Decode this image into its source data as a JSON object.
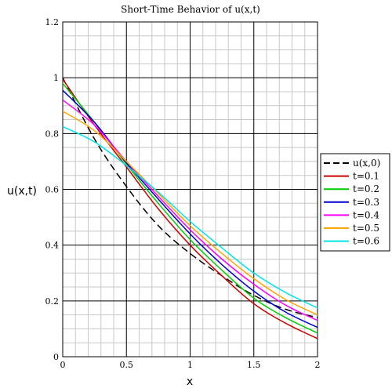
{
  "chart_data": {
    "type": "line",
    "title": "Short-Time Behavior of u(x,t)",
    "xlabel": "x",
    "ylabel": "u(x,t)",
    "xlim": [
      0,
      2
    ],
    "ylim": [
      0,
      1.2
    ],
    "x_ticks": [
      "0",
      "0.5",
      "1",
      "1.5",
      "2"
    ],
    "y_ticks": [
      "0",
      "0.2",
      "0.4",
      "0.6",
      "0.8",
      "1",
      "1.2"
    ],
    "grid": true,
    "legend_position": "right",
    "x": [
      0,
      0.25,
      0.5,
      0.75,
      1.0,
      1.25,
      1.5,
      1.75,
      2.0
    ],
    "series": [
      {
        "name": "u(x,0)",
        "color": "#000000",
        "dash": true,
        "values": [
          1.0,
          0.78,
          0.61,
          0.47,
          0.37,
          0.29,
          0.22,
          0.17,
          0.14
        ]
      },
      {
        "name": "t=0.1",
        "color": "#cc0000",
        "dash": false,
        "values": [
          0.995,
          0.83,
          0.68,
          0.53,
          0.4,
          0.29,
          0.19,
          0.12,
          0.065
        ]
      },
      {
        "name": "t=0.2",
        "color": "#00cc00",
        "dash": false,
        "values": [
          0.98,
          0.84,
          0.69,
          0.55,
          0.42,
          0.31,
          0.21,
          0.14,
          0.085
        ]
      },
      {
        "name": "t=0.3",
        "color": "#0000cc",
        "dash": false,
        "values": [
          0.955,
          0.84,
          0.695,
          0.565,
          0.44,
          0.33,
          0.235,
          0.16,
          0.105
        ]
      },
      {
        "name": "t=0.4",
        "color": "#ff00ff",
        "dash": false,
        "values": [
          0.92,
          0.83,
          0.7,
          0.575,
          0.455,
          0.35,
          0.26,
          0.185,
          0.13
        ]
      },
      {
        "name": "t=0.5",
        "color": "#ffa500",
        "dash": false,
        "values": [
          0.88,
          0.81,
          0.7,
          0.585,
          0.47,
          0.37,
          0.28,
          0.205,
          0.15
        ]
      },
      {
        "name": "t=0.6",
        "color": "#00e5e5",
        "dash": false,
        "values": [
          0.825,
          0.77,
          0.685,
          0.59,
          0.485,
          0.39,
          0.3,
          0.23,
          0.175
        ]
      }
    ]
  }
}
